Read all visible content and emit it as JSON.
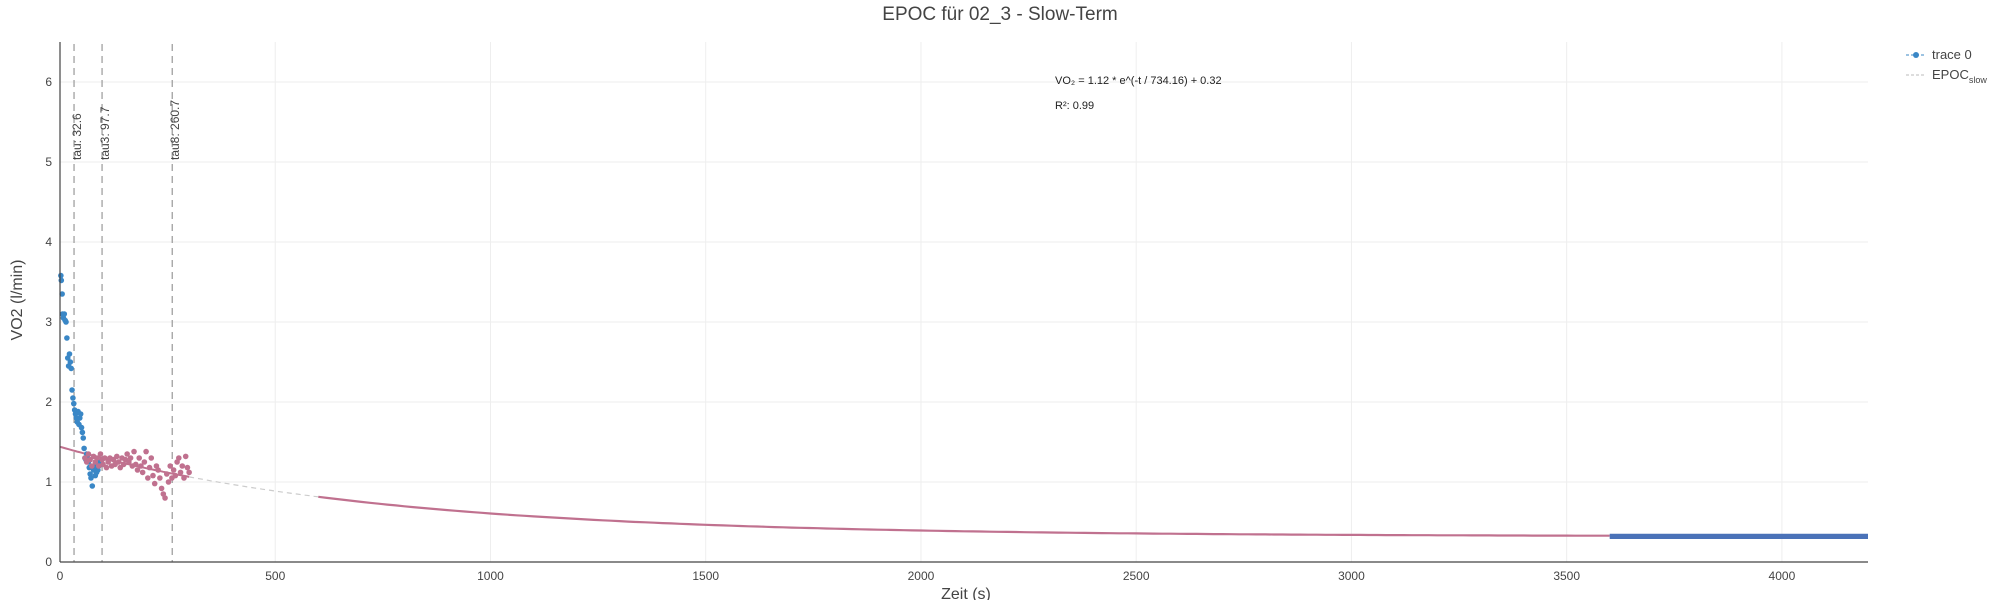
{
  "chart_data": {
    "type": "scatter",
    "title": "EPOC für 02_3 - Slow-Term",
    "xlabel": "Zeit (s)",
    "ylabel": "VO2 (l/min)",
    "xlim": [
      0,
      4200
    ],
    "ylim": [
      0,
      6.5
    ],
    "x_ticks": [
      0,
      500,
      1000,
      1500,
      2000,
      2500,
      3000,
      3500,
      4000
    ],
    "y_ticks": [
      0,
      1,
      2,
      3,
      4,
      5,
      6
    ],
    "grid": true,
    "legend_placement": "top-right",
    "colors": {
      "trace0": "#3a87c6",
      "epoc_points": "#c0718f",
      "fit": "#c0718f",
      "baseline": "#4a72b8",
      "dashed": "#999999"
    },
    "fit": {
      "a": 1.12,
      "tau": 734.16,
      "c": 0.32,
      "x_range": [
        0,
        3600
      ]
    },
    "vertical_lines": [
      {
        "x": 32.6,
        "label": "tau: 32.6"
      },
      {
        "x": 97.7,
        "label": "tau3: 97.7"
      },
      {
        "x": 260.7,
        "label": "tau8: 260.7"
      }
    ],
    "annotations": {
      "equation": "VO₂ = 1.12 * e^(-t / 734.16) + 0.32",
      "r2": "R²: 0.99"
    },
    "legend": {
      "trace0": "trace 0",
      "epoc_main": "EPOC",
      "epoc_sub": "slow"
    },
    "series": [
      {
        "name": "trace 0",
        "x": [
          2,
          3,
          5,
          6,
          8,
          10,
          12,
          14,
          16,
          18,
          20,
          22,
          24,
          26,
          28,
          30,
          32,
          34,
          36,
          38,
          40,
          42,
          44,
          46,
          48,
          50,
          52,
          54,
          56,
          58,
          60,
          62,
          64,
          66,
          68,
          70,
          72,
          75,
          78,
          80,
          82,
          85,
          88,
          90,
          92,
          95
        ],
        "y": [
          3.58,
          3.52,
          3.35,
          3.1,
          3.05,
          3.1,
          3.02,
          3.0,
          2.8,
          2.55,
          2.45,
          2.6,
          2.5,
          2.42,
          2.15,
          2.05,
          1.98,
          1.9,
          1.85,
          1.8,
          1.75,
          1.88,
          1.72,
          1.8,
          1.85,
          1.68,
          1.62,
          1.55,
          1.42,
          1.3,
          1.28,
          1.35,
          1.3,
          1.25,
          1.18,
          1.1,
          1.05,
          0.95,
          1.15,
          1.2,
          1.08,
          1.12,
          1.15,
          1.2,
          1.25,
          1.22
        ]
      },
      {
        "name": "EPOC points",
        "x": [
          58,
          62,
          66,
          70,
          74,
          78,
          82,
          86,
          90,
          94,
          98,
          100,
          104,
          108,
          112,
          116,
          120,
          124,
          128,
          132,
          136,
          140,
          144,
          148,
          152,
          156,
          160,
          164,
          168,
          172,
          176,
          180,
          184,
          188,
          192,
          196,
          200,
          204,
          208,
          212,
          216,
          220,
          224,
          228,
          232,
          236,
          240,
          244,
          248,
          252,
          256,
          260,
          264,
          268,
          272,
          276,
          280,
          284,
          288,
          292,
          296,
          300
        ],
        "y": [
          1.3,
          1.25,
          1.35,
          1.28,
          1.2,
          1.32,
          1.25,
          1.3,
          1.2,
          1.35,
          1.28,
          1.22,
          1.3,
          1.18,
          1.25,
          1.3,
          1.2,
          1.28,
          1.22,
          1.32,
          1.25,
          1.18,
          1.3,
          1.22,
          1.28,
          1.35,
          1.25,
          1.3,
          1.2,
          1.38,
          1.22,
          1.15,
          1.3,
          1.2,
          1.12,
          1.25,
          1.38,
          1.05,
          1.18,
          1.3,
          1.08,
          0.98,
          1.2,
          1.15,
          1.05,
          0.92,
          0.85,
          0.8,
          1.1,
          1.0,
          1.2,
          1.05,
          1.15,
          1.08,
          1.25,
          1.3,
          1.12,
          1.2,
          1.05,
          1.32,
          1.18,
          1.12
        ]
      }
    ],
    "baseline": {
      "x_range": [
        3600,
        4200
      ],
      "y_values": [
        0.3,
        0.32,
        0.34
      ]
    }
  }
}
